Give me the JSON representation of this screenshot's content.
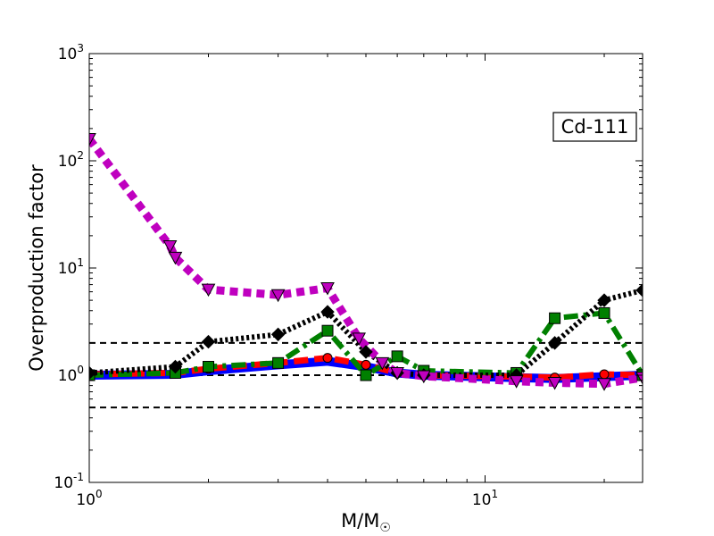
{
  "chart_data": {
    "type": "line",
    "title": "",
    "xlabel": "M/M",
    "xlabel_sub": "☉",
    "ylabel": "Overproduction factor",
    "xscale": "log",
    "yscale": "log",
    "xlim": [
      1,
      25
    ],
    "ylim": [
      0.1,
      1000
    ],
    "x_ticks": [
      {
        "value": 1,
        "base": "10",
        "exp": "0"
      },
      {
        "value": 10,
        "base": "10",
        "exp": "1"
      }
    ],
    "y_ticks": [
      {
        "value": 0.1,
        "base": "10",
        "exp": "-1"
      },
      {
        "value": 1,
        "base": "10",
        "exp": "0"
      },
      {
        "value": 10,
        "base": "10",
        "exp": "1"
      },
      {
        "value": 100,
        "base": "10",
        "exp": "2"
      },
      {
        "value": 1000,
        "base": "10",
        "exp": "3"
      }
    ],
    "reference_lines": [
      0.5,
      1,
      2
    ],
    "annotation": "Cd-111",
    "legend": "none",
    "grid": false,
    "series": [
      {
        "color": "#0000ff",
        "marker": "none",
        "linestyle": "solid",
        "x": [
          1,
          1.65,
          2,
          3,
          4,
          5,
          6,
          7,
          12,
          15,
          20,
          25
        ],
        "y": [
          1.0,
          1.02,
          1.1,
          1.25,
          1.35,
          1.2,
          1.05,
          1.0,
          0.95,
          0.93,
          0.97,
          1.0
        ]
      },
      {
        "color": "#ff0000",
        "marker": "circle",
        "linestyle": "dashed",
        "x": [
          1,
          1.65,
          2,
          3,
          4,
          5,
          6,
          7,
          12,
          15,
          20,
          25
        ],
        "y": [
          1.02,
          1.05,
          1.15,
          1.3,
          1.45,
          1.25,
          1.05,
          1.0,
          0.97,
          0.95,
          1.02,
          1.0
        ]
      },
      {
        "color": "#008000",
        "marker": "square",
        "linestyle": "dashdot",
        "x": [
          1,
          1.65,
          2,
          3,
          4,
          5,
          6,
          7,
          12,
          15,
          20,
          25
        ],
        "y": [
          1.0,
          1.05,
          1.2,
          1.3,
          2.6,
          1.0,
          1.5,
          1.1,
          1.05,
          3.4,
          3.8,
          1.0
        ]
      },
      {
        "color": "#000000",
        "marker": "diamond",
        "linestyle": "dotted",
        "x": [
          1,
          1.65,
          2,
          3,
          4,
          5,
          6,
          7,
          12,
          15,
          20,
          25
        ],
        "y": [
          1.05,
          1.2,
          2.05,
          2.4,
          3.9,
          1.65,
          1.05,
          1.0,
          1.0,
          2.0,
          5.0,
          6.2
        ]
      },
      {
        "color": "#bf00bf",
        "marker": "triangle-down",
        "linestyle": "dotted",
        "x": [
          1,
          1.6,
          1.65,
          2,
          3,
          4,
          4.8,
          5.5,
          6,
          7,
          12,
          15,
          20,
          25
        ],
        "y": [
          160,
          16,
          12.5,
          6.3,
          5.6,
          6.5,
          2.2,
          1.3,
          1.05,
          0.98,
          0.88,
          0.85,
          0.83,
          0.95
        ]
      }
    ]
  }
}
